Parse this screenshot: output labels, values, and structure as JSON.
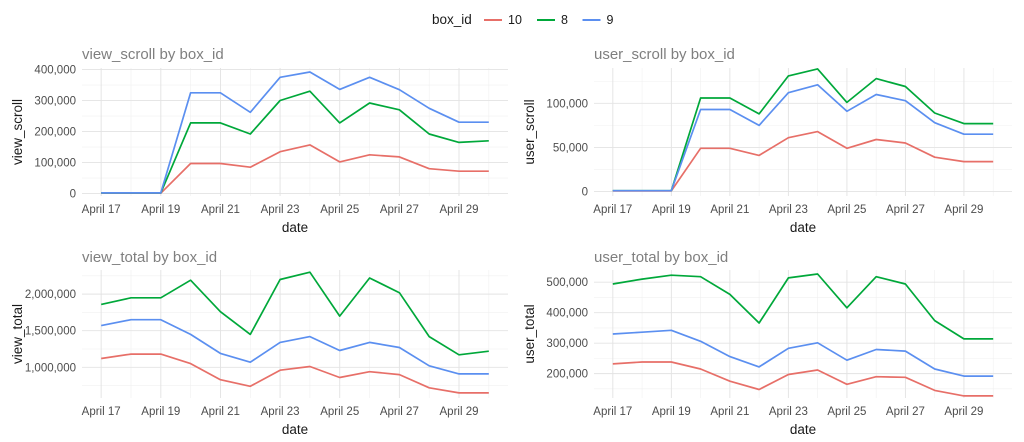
{
  "legend": {
    "title": "box_id",
    "entries": [
      {
        "label": "10",
        "color": "#e76f68"
      },
      {
        "label": "8",
        "color": "#00a83a"
      },
      {
        "label": "9",
        "color": "#5b8ff0"
      }
    ]
  },
  "chart_data": [
    {
      "type": "line",
      "title": "view_scroll by box_id",
      "xlabel": "date",
      "ylabel": "view_scroll",
      "x": [
        "April 17",
        "April 18",
        "April 19",
        "April 20",
        "April 21",
        "April 22",
        "April 23",
        "April 24",
        "April 25",
        "April 26",
        "April 27",
        "April 28",
        "April 29",
        "April 30"
      ],
      "x_ticks": [
        "April 17",
        "April 19",
        "April 21",
        "April 23",
        "April 25",
        "April 27",
        "April 29"
      ],
      "ylim": [
        -8000,
        405000
      ],
      "y_ticks": [
        0,
        100000,
        200000,
        300000,
        400000
      ],
      "y_tick_labels": [
        "0",
        "100,000",
        "200,000",
        "300,000",
        "400,000"
      ],
      "grid": true,
      "series": [
        {
          "name": "10",
          "color": "#e76f68",
          "values": [
            1000,
            1000,
            1000,
            97000,
            97000,
            85000,
            135000,
            157000,
            102000,
            125000,
            118000,
            80000,
            72000,
            72000
          ]
        },
        {
          "name": "8",
          "color": "#00a83a",
          "values": [
            2000,
            2000,
            2000,
            228000,
            228000,
            192000,
            300000,
            330000,
            228000,
            292000,
            270000,
            192000,
            165000,
            170000
          ]
        },
        {
          "name": "9",
          "color": "#5b8ff0",
          "values": [
            2000,
            2000,
            2000,
            325000,
            325000,
            262000,
            375000,
            392000,
            336000,
            375000,
            335000,
            275000,
            230000,
            230000
          ]
        }
      ]
    },
    {
      "type": "line",
      "title": "user_scroll by box_id",
      "xlabel": "date",
      "ylabel": "user_scroll",
      "x": [
        "April 17",
        "April 18",
        "April 19",
        "April 20",
        "April 21",
        "April 22",
        "April 23",
        "April 24",
        "April 25",
        "April 26",
        "April 27",
        "April 28",
        "April 29",
        "April 30"
      ],
      "x_ticks": [
        "April 17",
        "April 19",
        "April 21",
        "April 23",
        "April 25",
        "April 27",
        "April 29"
      ],
      "ylim": [
        -5000,
        140000
      ],
      "y_ticks": [
        0,
        50000,
        100000
      ],
      "y_tick_labels": [
        "0",
        "50,000",
        "100,000"
      ],
      "grid": true,
      "series": [
        {
          "name": "10",
          "color": "#e76f68",
          "values": [
            800,
            800,
            800,
            49000,
            49000,
            41000,
            61000,
            68000,
            49000,
            59000,
            55000,
            39000,
            34000,
            34000
          ]
        },
        {
          "name": "8",
          "color": "#00a83a",
          "values": [
            1000,
            1000,
            1000,
            106000,
            106000,
            88000,
            131000,
            139000,
            101000,
            128000,
            119000,
            89000,
            77000,
            77000
          ]
        },
        {
          "name": "9",
          "color": "#5b8ff0",
          "values": [
            1000,
            1000,
            1000,
            93000,
            93000,
            75000,
            112000,
            121000,
            91000,
            110000,
            103000,
            78000,
            65000,
            65000
          ]
        }
      ]
    },
    {
      "type": "line",
      "title": "view_total by box_id",
      "xlabel": "date",
      "ylabel": "view_total",
      "x": [
        "April 17",
        "April 18",
        "April 19",
        "April 20",
        "April 21",
        "April 22",
        "April 23",
        "April 24",
        "April 25",
        "April 26",
        "April 27",
        "April 28",
        "April 29",
        "April 30"
      ],
      "x_ticks": [
        "April 17",
        "April 19",
        "April 21",
        "April 23",
        "April 25",
        "April 27",
        "April 29"
      ],
      "ylim": [
        580000,
        2330000
      ],
      "y_ticks": [
        1000000,
        1500000,
        2000000
      ],
      "y_tick_labels": [
        "1,000,000",
        "1,500,000",
        "2,000,000"
      ],
      "grid": true,
      "series": [
        {
          "name": "10",
          "color": "#e76f68",
          "values": [
            1120000,
            1180000,
            1180000,
            1050000,
            830000,
            740000,
            960000,
            1010000,
            860000,
            940000,
            900000,
            720000,
            650000,
            650000
          ]
        },
        {
          "name": "8",
          "color": "#00a83a",
          "values": [
            1860000,
            1950000,
            1950000,
            2190000,
            1760000,
            1450000,
            2200000,
            2300000,
            1700000,
            2220000,
            2020000,
            1420000,
            1170000,
            1220000
          ]
        },
        {
          "name": "9",
          "color": "#5b8ff0",
          "values": [
            1570000,
            1650000,
            1650000,
            1450000,
            1190000,
            1070000,
            1340000,
            1420000,
            1230000,
            1340000,
            1270000,
            1020000,
            910000,
            910000
          ]
        }
      ]
    },
    {
      "type": "line",
      "title": "user_total by box_id",
      "xlabel": "date",
      "ylabel": "user_total",
      "x": [
        "April 17",
        "April 18",
        "April 19",
        "April 20",
        "April 21",
        "April 22",
        "April 23",
        "April 24",
        "April 25",
        "April 26",
        "April 27",
        "April 28",
        "April 29",
        "April 30"
      ],
      "x_ticks": [
        "April 17",
        "April 19",
        "April 21",
        "April 23",
        "April 25",
        "April 27",
        "April 29"
      ],
      "ylim": [
        120000,
        540000
      ],
      "y_ticks": [
        200000,
        300000,
        400000,
        500000
      ],
      "y_tick_labels": [
        "200,000",
        "300,000",
        "400,000",
        "500,000"
      ],
      "grid": true,
      "series": [
        {
          "name": "10",
          "color": "#e76f68",
          "values": [
            232000,
            238000,
            238000,
            215000,
            175000,
            148000,
            197000,
            212000,
            165000,
            190000,
            188000,
            145000,
            127000,
            127000
          ]
        },
        {
          "name": "8",
          "color": "#00a83a",
          "values": [
            494000,
            510000,
            523000,
            518000,
            460000,
            366000,
            514000,
            527000,
            416000,
            518000,
            494000,
            374000,
            314000,
            314000
          ]
        },
        {
          "name": "9",
          "color": "#5b8ff0",
          "values": [
            330000,
            336000,
            342000,
            306000,
            256000,
            222000,
            283000,
            301000,
            244000,
            279000,
            274000,
            215000,
            192000,
            192000
          ]
        }
      ]
    }
  ]
}
